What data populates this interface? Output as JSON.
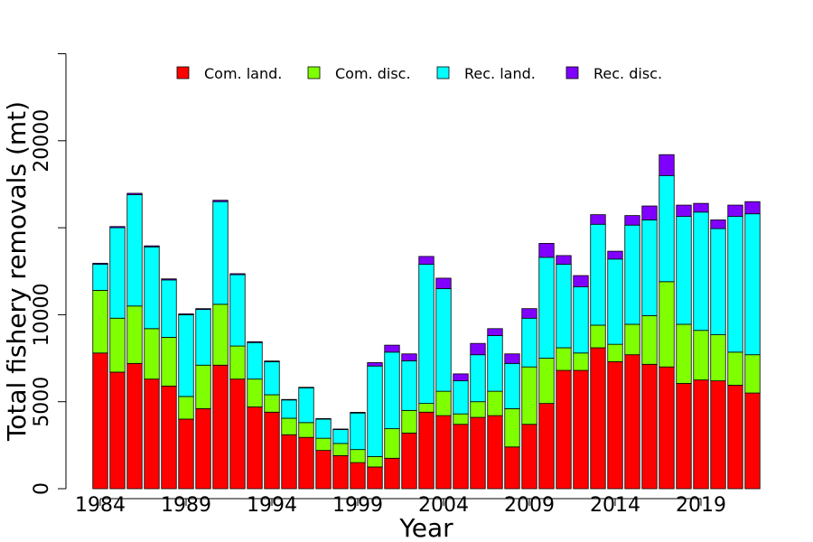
{
  "chart_data": {
    "type": "bar",
    "stacked": true,
    "title": "",
    "xlabel": "Year",
    "ylabel": "Total fishery removals (mt)",
    "ylim": [
      0,
      25000
    ],
    "y_ticks": [
      0,
      5000,
      10000,
      15000,
      20000,
      25000
    ],
    "y_tick_labels": [
      "0",
      "5000",
      "10000",
      "",
      "20000",
      ""
    ],
    "x_tick_years": [
      1984,
      1989,
      1994,
      1999,
      2004,
      2009,
      2014,
      2019
    ],
    "legend_position": "top",
    "grid": false,
    "categories": [
      1984,
      1985,
      1986,
      1987,
      1988,
      1989,
      1990,
      1991,
      1992,
      1993,
      1994,
      1995,
      1996,
      1997,
      1998,
      1999,
      2000,
      2001,
      2002,
      2003,
      2004,
      2005,
      2006,
      2007,
      2008,
      2009,
      2010,
      2011,
      2012,
      2013,
      2014,
      2015,
      2016,
      2017,
      2018,
      2019,
      2020,
      2021,
      2022
    ],
    "series": [
      {
        "name": "Com. land.",
        "color": "#FF0000",
        "values": [
          7800,
          6700,
          7200,
          6300,
          5900,
          4000,
          4600,
          7100,
          6300,
          4700,
          4400,
          3100,
          2950,
          2200,
          1900,
          1500,
          1250,
          1750,
          3200,
          4400,
          4200,
          3700,
          4100,
          4200,
          2400,
          3700,
          4900,
          6800,
          6800,
          8100,
          7300,
          7700,
          7150,
          7000,
          6050,
          6250,
          6200,
          5950,
          5500
        ]
      },
      {
        "name": "Com. disc.",
        "color": "#80FF00",
        "values": [
          3600,
          3100,
          3300,
          2900,
          2800,
          1300,
          2500,
          3500,
          1900,
          1600,
          1000,
          950,
          850,
          700,
          700,
          750,
          600,
          1700,
          1300,
          500,
          1400,
          600,
          900,
          1400,
          2200,
          3300,
          2600,
          1300,
          1000,
          1300,
          1000,
          1750,
          2800,
          4900,
          3400,
          2850,
          2650,
          1900,
          2200
        ]
      },
      {
        "name": "Rec. land.",
        "color": "#00FFFF",
        "values": [
          1500,
          5200,
          6400,
          4700,
          3300,
          4700,
          3200,
          5900,
          4100,
          2100,
          1900,
          1050,
          2000,
          1100,
          800,
          2100,
          5200,
          4400,
          2850,
          8000,
          5900,
          1900,
          2700,
          3200,
          2600,
          2800,
          5800,
          4800,
          3800,
          5800,
          4900,
          5700,
          5500,
          6100,
          6200,
          6800,
          6100,
          7800,
          8100
        ]
      },
      {
        "name": "Rec. disc.",
        "color": "#8000FF",
        "values": [
          60,
          70,
          80,
          60,
          60,
          50,
          50,
          80,
          60,
          50,
          40,
          30,
          30,
          30,
          30,
          40,
          200,
          400,
          400,
          450,
          600,
          400,
          650,
          400,
          550,
          550,
          800,
          500,
          650,
          550,
          450,
          550,
          800,
          1200,
          650,
          500,
          500,
          650,
          700
        ]
      }
    ],
    "legend": [
      "Com. land.",
      "Com. disc.",
      "Rec. land.",
      "Rec. disc."
    ]
  }
}
